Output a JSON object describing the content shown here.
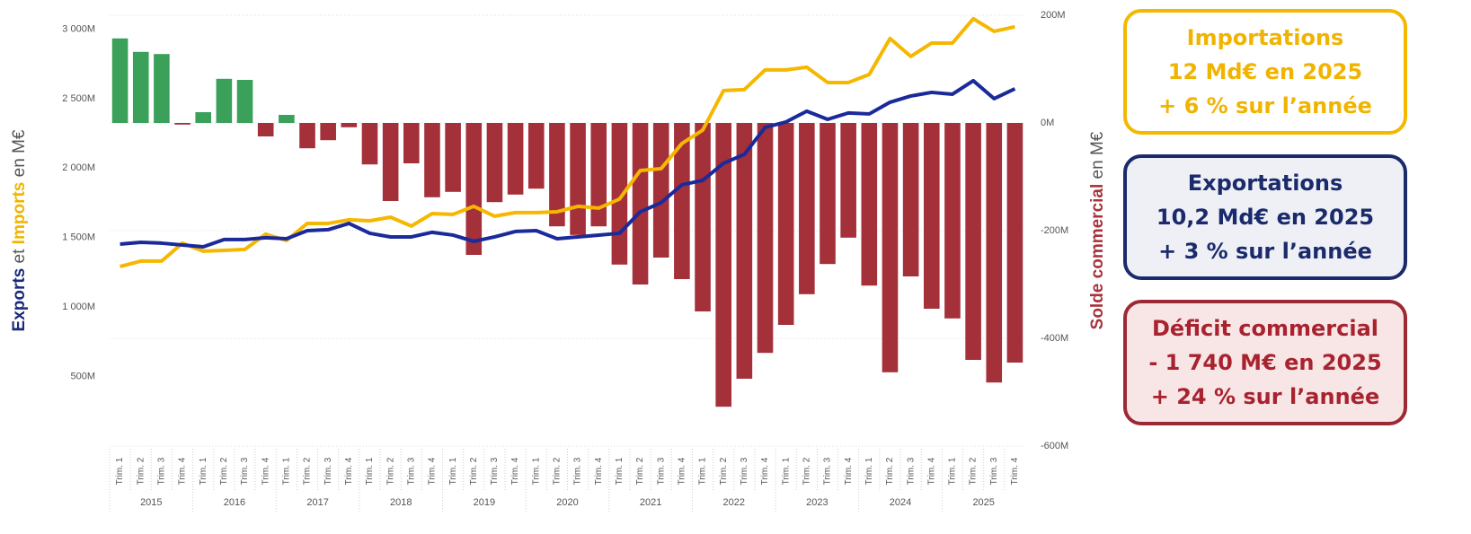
{
  "chart_data": {
    "type": "bar-line",
    "y_label": [
      {
        "text": "Exports",
        "color": "#1b2a7a",
        "bold": true
      },
      {
        "text": " et ",
        "color": "#555555"
      },
      {
        "text": "Imports",
        "color": "#f0b400",
        "bold": true
      },
      {
        "text": " en M€",
        "color": "#555555"
      }
    ],
    "y2_label": [
      {
        "text": "Solde commercial",
        "color": "#a8323c",
        "bold": true
      },
      {
        "text": " en M€",
        "color": "#555555"
      }
    ],
    "categories": [
      "Trim. 1",
      "Trim. 2",
      "Trim. 3",
      "Trim. 4",
      "Trim. 1",
      "Trim. 2",
      "Trim. 3",
      "Trim. 4",
      "Trim. 1",
      "Trim. 2",
      "Trim. 3",
      "Trim. 4",
      "Trim. 1",
      "Trim. 2",
      "Trim. 3",
      "Trim. 4",
      "Trim. 1",
      "Trim. 2",
      "Trim. 3",
      "Trim. 4",
      "Trim. 1",
      "Trim. 2",
      "Trim. 3",
      "Trim. 4",
      "Trim. 1",
      "Trim. 2",
      "Trim. 3",
      "Trim. 4",
      "Trim. 1",
      "Trim. 2",
      "Trim. 3",
      "Trim. 4",
      "Trim. 1",
      "Trim. 2",
      "Trim. 3",
      "Trim. 4",
      "Trim. 1",
      "Trim. 2",
      "Trim. 3",
      "Trim. 4",
      "Trim. 1",
      "Trim. 2",
      "Trim. 3",
      "Trim. 4"
    ],
    "x_groups": [
      "2015",
      "2016",
      "2017",
      "2018",
      "2019",
      "2020",
      "2021",
      "2022",
      "2023",
      "2024",
      "2025"
    ],
    "ylim": [
      0,
      3100
    ],
    "yticks": [
      {
        "value": 500,
        "label": "500M"
      },
      {
        "value": 1000,
        "label": "1 000M"
      },
      {
        "value": 1500,
        "label": "1 500M"
      },
      {
        "value": 2000,
        "label": "2 000M"
      },
      {
        "value": 2500,
        "label": "2 500M"
      },
      {
        "value": 3000,
        "label": "3 000M"
      }
    ],
    "y2lim": [
      -600,
      200
    ],
    "y2ticks": [
      {
        "value": -600,
        "label": "-600M"
      },
      {
        "value": -400,
        "label": "-400M"
      },
      {
        "value": -200,
        "label": "-200M"
      },
      {
        "value": 0,
        "label": "0M"
      },
      {
        "value": 200,
        "label": "200M"
      }
    ],
    "grid": true,
    "series": [
      {
        "type": "bar",
        "axis": "y2",
        "color": "#a4303a",
        "positive_color": "#3aa05a",
        "values": [
          157,
          132,
          128,
          -3,
          20,
          82,
          80,
          -25,
          15,
          -47,
          -32,
          -8,
          -77,
          -145,
          -75,
          -138,
          -128,
          -245,
          -147,
          -133,
          -122,
          -192,
          -208,
          -192,
          -263,
          -300,
          -250,
          -290,
          -350,
          -527,
          -475,
          -427,
          -375,
          -318,
          -262,
          -213,
          -302,
          -463,
          -285,
          -345,
          -363,
          -440,
          -482,
          -445
        ]
      },
      {
        "type": "line",
        "axis": "y",
        "color": "#f5b700",
        "values": [
          1292,
          1331,
          1331,
          1460,
          1402,
          1408,
          1415,
          1525,
          1479,
          1602,
          1602,
          1628,
          1621,
          1647,
          1583,
          1673,
          1667,
          1725,
          1654,
          1680,
          1680,
          1686,
          1725,
          1712,
          1777,
          1983,
          1996,
          2177,
          2274,
          2558,
          2565,
          2707,
          2707,
          2726,
          2616,
          2616,
          2674,
          2933,
          2804,
          2900,
          2900,
          3075,
          2984,
          3017
        ]
      },
      {
        "type": "line",
        "axis": "y",
        "color": "#1b2a9a",
        "values": [
          1453,
          1466,
          1460,
          1447,
          1434,
          1486,
          1486,
          1499,
          1492,
          1550,
          1557,
          1602,
          1531,
          1505,
          1505,
          1538,
          1518,
          1473,
          1505,
          1544,
          1550,
          1492,
          1505,
          1518,
          1531,
          1686,
          1751,
          1880,
          1912,
          2035,
          2099,
          2293,
          2332,
          2410,
          2351,
          2397,
          2390,
          2474,
          2519,
          2545,
          2532,
          2629,
          2500,
          2571
        ]
      }
    ]
  },
  "cards": [
    {
      "lines": [
        "Importations",
        "12 Md€ en 2025",
        "+ 6 % sur l’année"
      ],
      "color": "#f0b400",
      "border": "#f5b800",
      "background": "#ffffff"
    },
    {
      "lines": [
        "Exportations",
        "10,2 Md€ en 2025",
        "+ 3 % sur l’année"
      ],
      "color": "#1b2a6b",
      "border": "#1b2a6b",
      "background": "#eef0f6"
    },
    {
      "lines": [
        "Déficit commercial",
        "- 1 740 M€ en 2025",
        "+ 24 % sur l’année"
      ],
      "color": "#a8232f",
      "border": "#9c2a35",
      "background": "#f8e6e6"
    }
  ]
}
